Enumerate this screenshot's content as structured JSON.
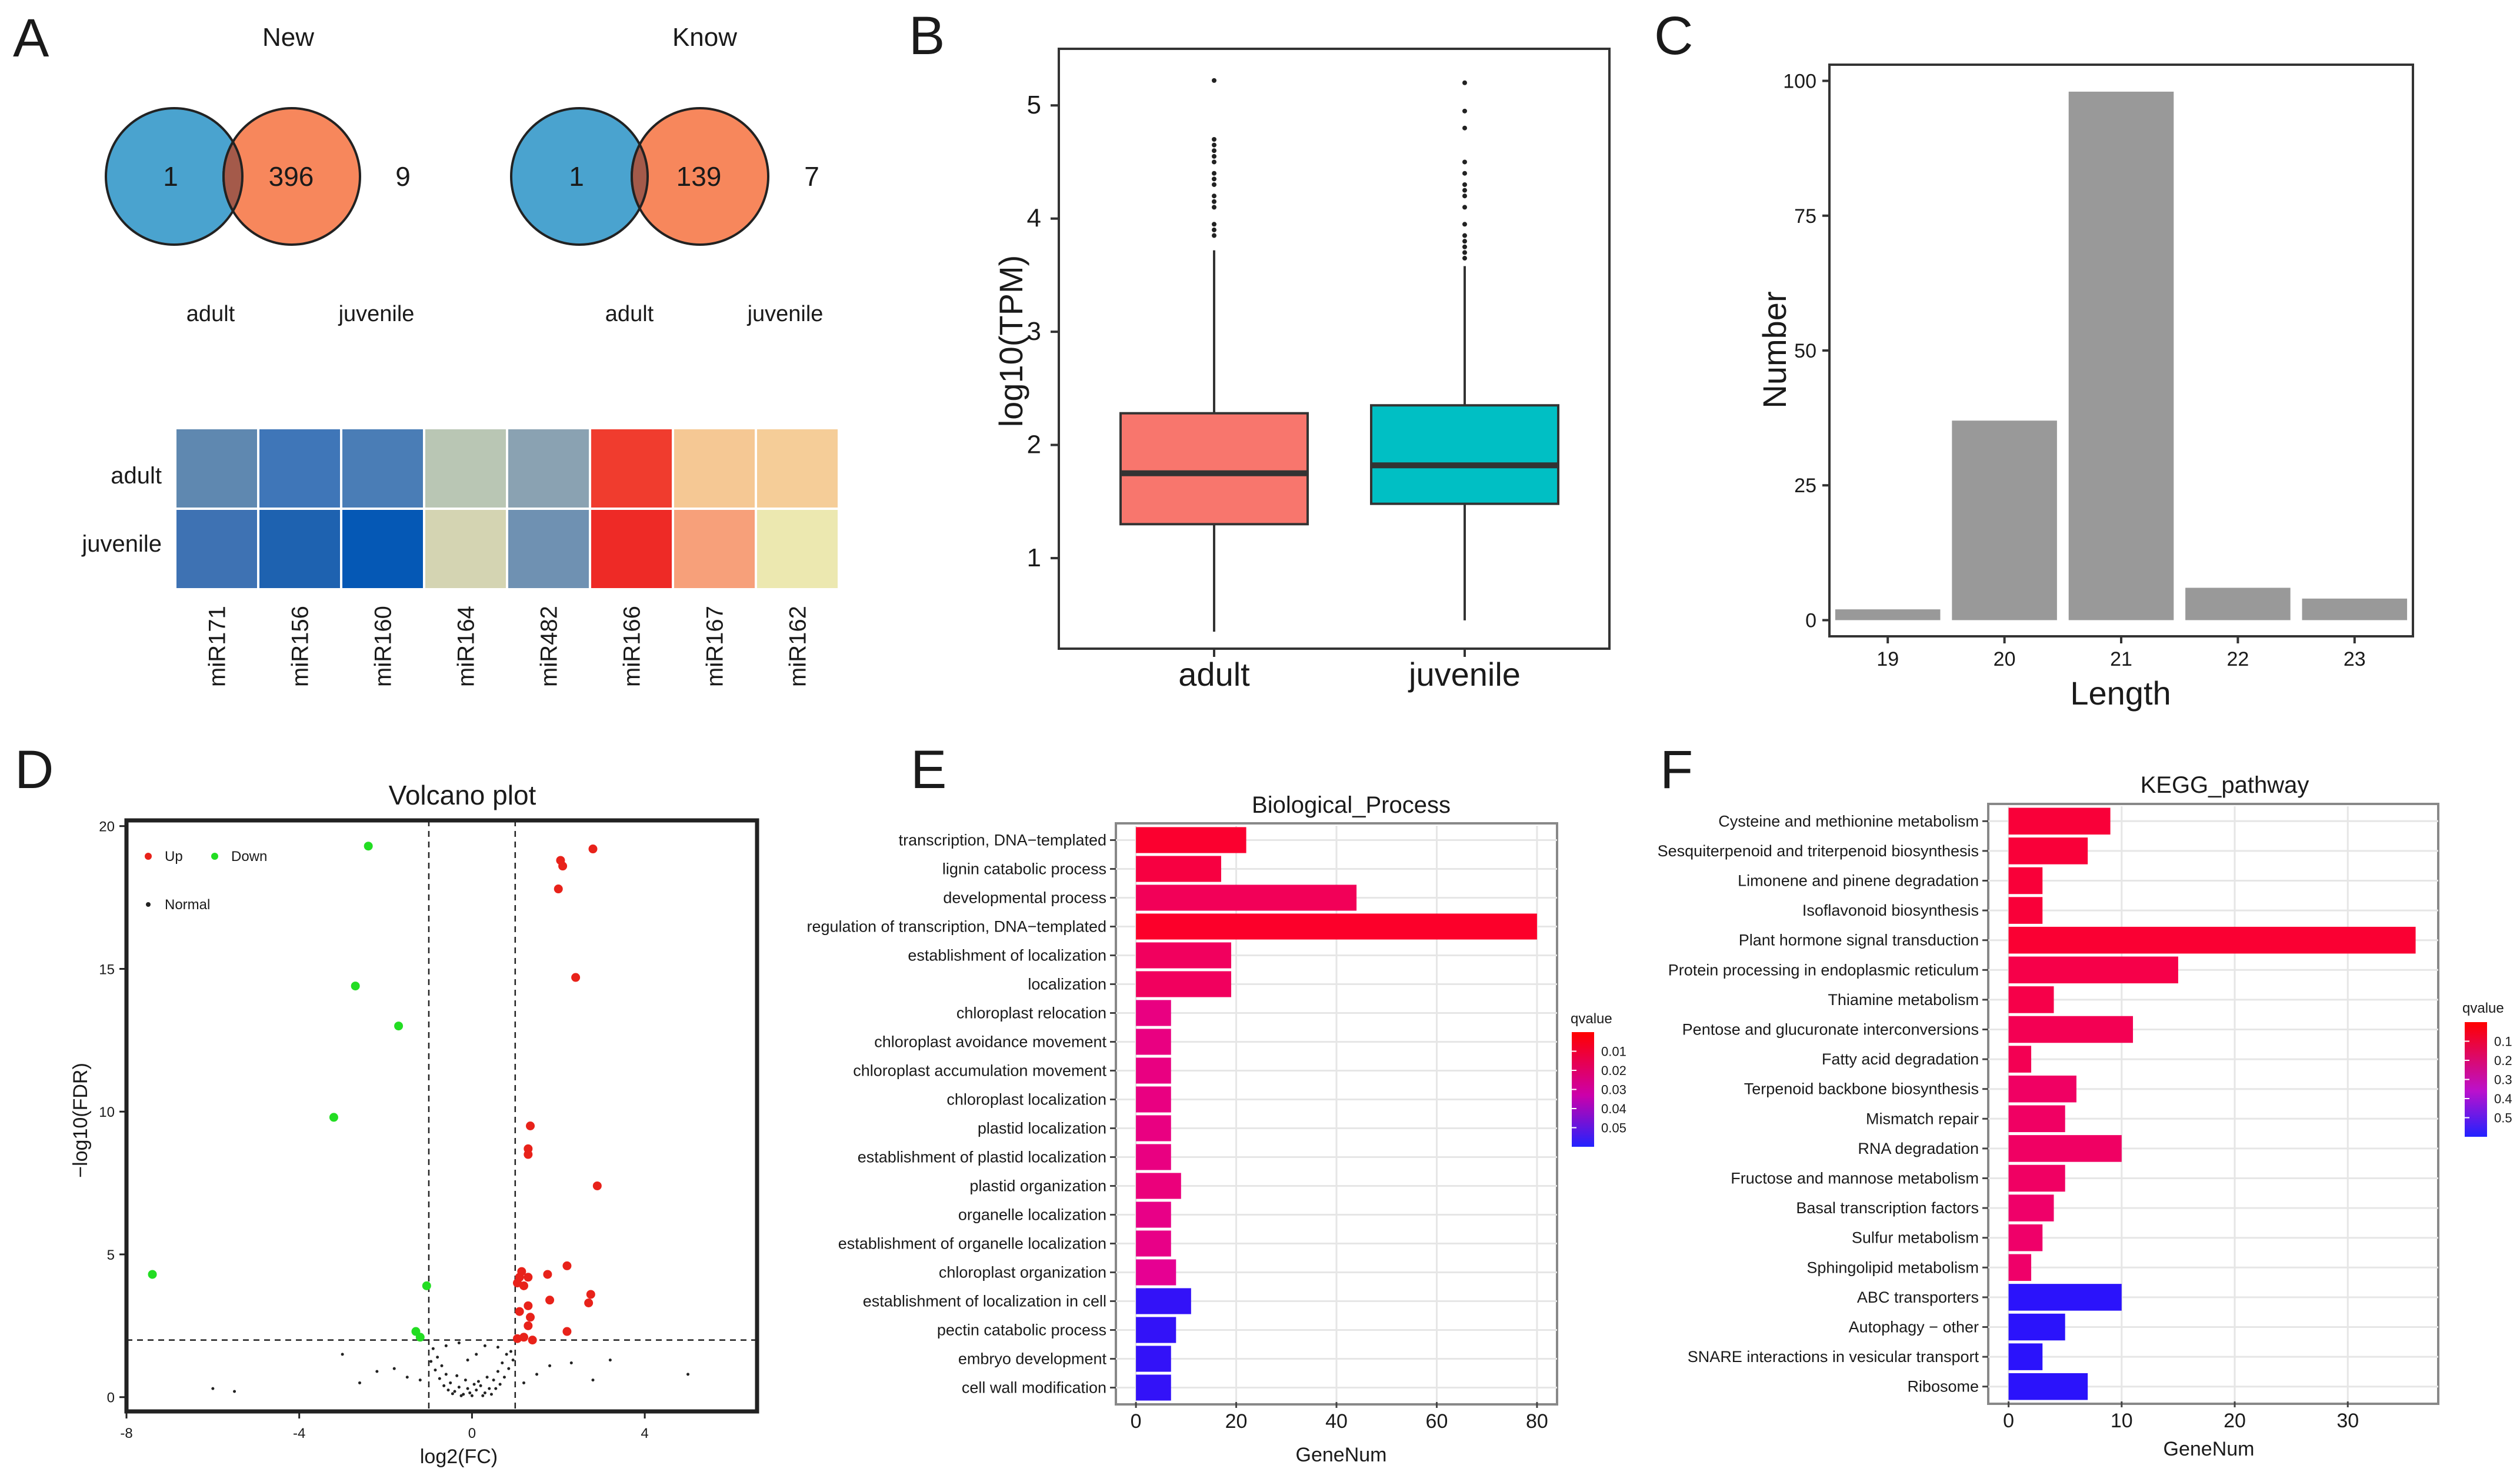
{
  "panels": {
    "A": "A",
    "B": "B",
    "C": "C",
    "D": "D",
    "E": "E",
    "F": "F"
  },
  "colors": {
    "venn_left": "#4aa3cf",
    "venn_right": "#f7875c",
    "venn_overlap": "#a45a4a",
    "box_adult": "#f8766d",
    "box_juvenile": "#00bfc4",
    "bar_gray": "#999999",
    "up": "#e8221a",
    "down": "#22dd22",
    "normal": "#222222"
  },
  "chart_data": [
    {
      "id": "venn_new",
      "type": "venn",
      "title": "New",
      "sets": [
        "adult",
        "juvenile"
      ],
      "values": {
        "left_only": "1",
        "overlap": "396",
        "right_only": "9"
      }
    },
    {
      "id": "venn_know",
      "type": "venn",
      "title": "Know",
      "sets": [
        "adult",
        "juvenile"
      ],
      "values": {
        "left_only": "1",
        "overlap": "139",
        "right_only": "7"
      }
    },
    {
      "id": "heatmap",
      "type": "heatmap",
      "rows": [
        "adult",
        "juvenile"
      ],
      "columns": [
        "miR171",
        "miR156",
        "miR160",
        "miR164",
        "miR482",
        "miR166",
        "miR167",
        "miR162"
      ],
      "cell_colors": [
        [
          "#5f88b0",
          "#3f76b8",
          "#4a7db6",
          "#b9c6b4",
          "#8aa2b2",
          "#f03c2e",
          "#f5c894",
          "#f5cd98"
        ],
        [
          "#3e72b3",
          "#1e62b0",
          "#0558b5",
          "#d4d4b2",
          "#6f91b2",
          "#ee2a26",
          "#f7a07a",
          "#ece8b0"
        ]
      ]
    },
    {
      "id": "boxplot",
      "type": "box",
      "ylabel": "log10(TPM)",
      "categories": [
        "adult",
        "juvenile"
      ],
      "ylim": [
        0.2,
        5.5
      ],
      "yticks": [
        1,
        2,
        3,
        4,
        5
      ],
      "series": [
        {
          "name": "adult",
          "whisker_low": 0.35,
          "q1": 1.3,
          "median": 1.75,
          "q3": 2.28,
          "whisker_high": 3.72,
          "outliers": [
            3.85,
            3.9,
            3.95,
            4.1,
            4.15,
            4.2,
            4.3,
            4.35,
            4.4,
            4.5,
            4.55,
            4.6,
            4.65,
            4.7,
            5.22
          ]
        },
        {
          "name": "juvenile",
          "whisker_low": 0.45,
          "q1": 1.48,
          "median": 1.82,
          "q3": 2.35,
          "whisker_high": 3.58,
          "outliers": [
            3.65,
            3.7,
            3.75,
            3.8,
            3.85,
            3.95,
            4.1,
            4.2,
            4.25,
            4.3,
            4.4,
            4.5,
            4.8,
            4.95,
            5.2
          ]
        }
      ]
    },
    {
      "id": "length_bar",
      "type": "bar",
      "xlabel": "Length",
      "ylabel": "Number",
      "categories": [
        "19",
        "20",
        "21",
        "22",
        "23"
      ],
      "values": [
        2,
        37,
        98,
        6,
        4
      ],
      "ylim": [
        -3,
        103
      ],
      "yticks": [
        0,
        25,
        50,
        75,
        100
      ]
    },
    {
      "id": "volcano",
      "type": "scatter",
      "title": "Volcano plot",
      "xlabel": "log2(FC)",
      "ylabel": "−log10(FDR)",
      "xlim": [
        -8,
        6.6
      ],
      "ylim": [
        -0.5,
        20.2
      ],
      "xticks": [
        -8,
        -4,
        0,
        4
      ],
      "yticks": [
        0,
        5,
        10,
        15,
        20
      ],
      "thresholds": {
        "x": [
          -1,
          1
        ],
        "y": 2
      },
      "legend": {
        "up": "Up",
        "down": "Down",
        "normal": "Normal"
      },
      "up": [
        [
          2.1,
          18.6
        ],
        [
          2.05,
          18.8
        ],
        [
          2.0,
          17.8
        ],
        [
          2.8,
          19.2
        ],
        [
          2.4,
          14.7
        ],
        [
          1.35,
          9.5
        ],
        [
          1.3,
          8.7
        ],
        [
          1.3,
          8.5
        ],
        [
          2.9,
          7.4
        ],
        [
          1.1,
          4.2
        ],
        [
          1.15,
          4.4
        ],
        [
          1.05,
          4.0
        ],
        [
          1.3,
          4.2
        ],
        [
          1.75,
          4.3
        ],
        [
          2.2,
          4.6
        ],
        [
          2.75,
          3.6
        ],
        [
          2.7,
          3.3
        ],
        [
          1.2,
          3.9
        ],
        [
          1.3,
          3.2
        ],
        [
          1.8,
          3.4
        ],
        [
          1.35,
          2.8
        ],
        [
          1.3,
          2.5
        ],
        [
          1.2,
          2.1
        ],
        [
          1.4,
          2.0
        ],
        [
          1.05,
          2.05
        ],
        [
          1.1,
          3.0
        ],
        [
          2.2,
          2.3
        ]
      ],
      "down": [
        [
          -2.4,
          19.3
        ],
        [
          -2.7,
          14.4
        ],
        [
          -1.7,
          13.0
        ],
        [
          -3.2,
          9.8
        ],
        [
          -7.4,
          4.3
        ],
        [
          -1.05,
          3.9
        ],
        [
          -1.3,
          2.3
        ],
        [
          -1.2,
          2.1
        ]
      ],
      "normal": [
        [
          -0.4,
          0.2
        ],
        [
          -0.3,
          0.35
        ],
        [
          -0.2,
          0.1
        ],
        [
          -0.1,
          0.3
        ],
        [
          0.0,
          0.05
        ],
        [
          0.1,
          0.25
        ],
        [
          0.2,
          0.4
        ],
        [
          0.3,
          0.15
        ],
        [
          0.4,
          0.3
        ],
        [
          0.5,
          0.6
        ],
        [
          -0.5,
          0.5
        ],
        [
          -0.6,
          0.8
        ],
        [
          0.6,
          0.9
        ],
        [
          -0.7,
          1.1
        ],
        [
          0.7,
          1.2
        ],
        [
          -0.8,
          1.4
        ],
        [
          0.8,
          1.5
        ],
        [
          -0.9,
          1.7
        ],
        [
          0.9,
          1.6
        ],
        [
          0.15,
          0.55
        ],
        [
          -0.15,
          0.6
        ],
        [
          0.35,
          0.7
        ],
        [
          -0.35,
          0.75
        ],
        [
          0.55,
          0.3
        ],
        [
          -0.55,
          0.25
        ],
        [
          0.25,
          0.05
        ],
        [
          -0.25,
          0.05
        ],
        [
          0.05,
          0.45
        ],
        [
          -0.05,
          0.15
        ],
        [
          0.45,
          0.1
        ],
        [
          -0.45,
          0.12
        ],
        [
          0.65,
          0.45
        ],
        [
          -0.65,
          0.4
        ],
        [
          0.75,
          0.7
        ],
        [
          -0.75,
          0.65
        ],
        [
          0.85,
          1.0
        ],
        [
          -0.85,
          0.95
        ],
        [
          0.95,
          1.3
        ],
        [
          -0.95,
          1.25
        ],
        [
          1.2,
          0.5
        ],
        [
          -1.2,
          0.6
        ],
        [
          1.5,
          0.8
        ],
        [
          -1.5,
          0.7
        ],
        [
          1.8,
          1.1
        ],
        [
          -1.8,
          1.0
        ],
        [
          2.3,
          1.2
        ],
        [
          -2.2,
          0.9
        ],
        [
          2.8,
          0.6
        ],
        [
          -2.6,
          0.5
        ],
        [
          3.2,
          1.3
        ],
        [
          -3.0,
          1.5
        ],
        [
          -6.0,
          0.3
        ],
        [
          5.0,
          0.8
        ],
        [
          -5.5,
          0.2
        ],
        [
          0.3,
          1.8
        ],
        [
          -0.3,
          1.9
        ],
        [
          0.1,
          1.5
        ],
        [
          -0.1,
          1.3
        ],
        [
          0.6,
          1.75
        ],
        [
          -0.6,
          1.8
        ]
      ]
    },
    {
      "id": "go_bp",
      "type": "bar",
      "orientation": "horizontal",
      "title": "Biological_Process",
      "xlabel": "GeneNum",
      "xticks": [
        0,
        20,
        40,
        60,
        80
      ],
      "xlim": [
        -4,
        84
      ],
      "legend_title": "qvalue",
      "legend_ticks": [
        "0.01",
        "0.02",
        "0.03",
        "0.04",
        "0.05"
      ],
      "categories": [
        "transcription, DNA−templated",
        "lignin catabolic process",
        "developmental process",
        "regulation of transcription, DNA−templated",
        "establishment of localization",
        "localization",
        "chloroplast relocation",
        "chloroplast avoidance movement",
        "chloroplast accumulation movement",
        "chloroplast localization",
        "plastid localization",
        "establishment of plastid localization",
        "plastid organization",
        "organelle localization",
        "establishment of organelle localization",
        "chloroplast organization",
        "establishment of localization in cell",
        "pectin catabolic process",
        "embryo development",
        "cell wall modification"
      ],
      "values": [
        22,
        17,
        44,
        80,
        19,
        19,
        7,
        7,
        7,
        7,
        7,
        7,
        9,
        7,
        7,
        8,
        11,
        8,
        7,
        7
      ],
      "qvalues": [
        0.003,
        0.006,
        0.01,
        0.002,
        0.011,
        0.011,
        0.017,
        0.017,
        0.017,
        0.017,
        0.017,
        0.017,
        0.016,
        0.018,
        0.018,
        0.02,
        0.052,
        0.052,
        0.052,
        0.052
      ]
    },
    {
      "id": "kegg",
      "type": "bar",
      "orientation": "horizontal",
      "title": "KEGG_pathway",
      "xlabel": "GeneNum",
      "xticks": [
        0,
        10,
        20,
        30
      ],
      "xlim": [
        -1.8,
        38
      ],
      "legend_title": "qvalue",
      "legend_ticks": [
        "0.1",
        "0.2",
        "0.3",
        "0.4",
        "0.5"
      ],
      "categories": [
        "Cysteine and methionine metabolism",
        "Sesquiterpenoid and triterpenoid biosynthesis",
        "Limonene and pinene degradation",
        "Isoflavonoid biosynthesis",
        "Plant hormone signal transduction",
        "Protein processing in endoplasmic reticulum",
        "Thiamine metabolism",
        "Pentose and glucuronate interconversions",
        "Fatty acid degradation",
        "Terpenoid backbone biosynthesis",
        "Mismatch repair",
        "RNA degradation",
        "Fructose and mannose metabolism",
        "Basal transcription factors",
        "Sulfur metabolism",
        "Sphingolipid metabolism",
        "ABC transporters",
        "Autophagy − other",
        "SNARE interactions in vesicular transport",
        "Ribosome"
      ],
      "values": [
        9,
        7,
        3,
        3,
        36,
        15,
        4,
        11,
        2,
        6,
        5,
        10,
        5,
        4,
        3,
        2,
        10,
        5,
        3,
        7
      ],
      "qvalues": [
        0.05,
        0.05,
        0.05,
        0.05,
        0.04,
        0.08,
        0.08,
        0.1,
        0.1,
        0.13,
        0.13,
        0.13,
        0.13,
        0.14,
        0.14,
        0.14,
        0.58,
        0.58,
        0.58,
        0.58
      ]
    }
  ]
}
